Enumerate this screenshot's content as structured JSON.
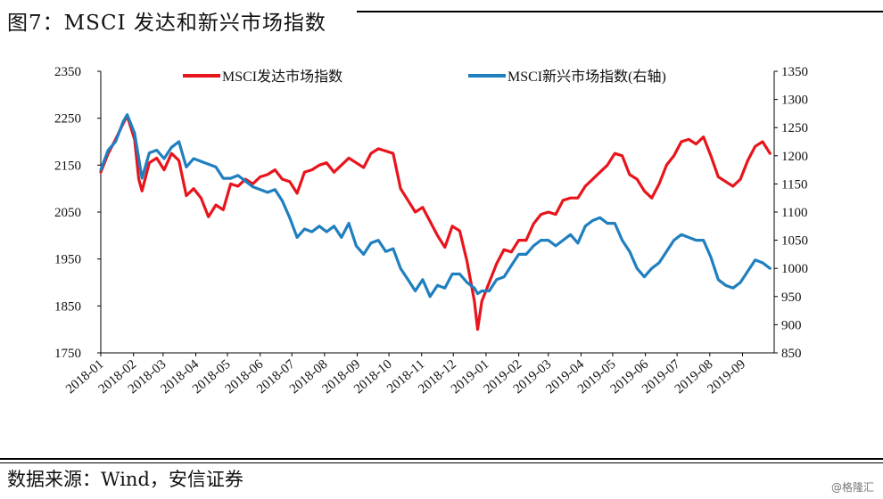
{
  "figure": {
    "title": "图7：MSCI 发达和新兴市场指数",
    "source": "数据来源：Wind，安信证券",
    "watermark": "@格隆汇"
  },
  "chart_data": {
    "type": "line",
    "title": "图7：MSCI 发达和新兴市场指数",
    "xlabel": "",
    "ylabel": "",
    "x_ticks": [
      "2018-01",
      "2018-02",
      "2018-03",
      "2018-04",
      "2018-05",
      "2018-06",
      "2018-07",
      "2018-08",
      "2018-09",
      "2018-10",
      "2018-11",
      "2018-12",
      "2019-01",
      "2019-02",
      "2019-03",
      "2019-04",
      "2019-05",
      "2019-06",
      "2019-07",
      "2019-08",
      "2019-09"
    ],
    "y_left": {
      "range": [
        1750,
        2350
      ],
      "ticks": [
        1750,
        1850,
        1950,
        2050,
        2150,
        2250,
        2350
      ]
    },
    "y_right": {
      "range": [
        850,
        1350
      ],
      "ticks": [
        850,
        900,
        950,
        1000,
        1050,
        1100,
        1150,
        1200,
        1250,
        1300,
        1350
      ]
    },
    "legend_position": "top",
    "grid": false,
    "series": [
      {
        "name": "MSCI发达市场指数",
        "axis": "left",
        "color": "#e8141b",
        "points": [
          [
            "2018-01-01",
            2135
          ],
          [
            "2018-01-08",
            2175
          ],
          [
            "2018-01-15",
            2205
          ],
          [
            "2018-01-22",
            2238
          ],
          [
            "2018-01-26",
            2255
          ],
          [
            "2018-02-02",
            2205
          ],
          [
            "2018-02-06",
            2120
          ],
          [
            "2018-02-09",
            2095
          ],
          [
            "2018-02-16",
            2155
          ],
          [
            "2018-02-23",
            2165
          ],
          [
            "2018-03-02",
            2140
          ],
          [
            "2018-03-09",
            2175
          ],
          [
            "2018-03-16",
            2160
          ],
          [
            "2018-03-23",
            2085
          ],
          [
            "2018-03-30",
            2100
          ],
          [
            "2018-04-06",
            2080
          ],
          [
            "2018-04-13",
            2040
          ],
          [
            "2018-04-20",
            2065
          ],
          [
            "2018-04-27",
            2055
          ],
          [
            "2018-05-04",
            2110
          ],
          [
            "2018-05-11",
            2105
          ],
          [
            "2018-05-18",
            2120
          ],
          [
            "2018-05-25",
            2110
          ],
          [
            "2018-06-01",
            2125
          ],
          [
            "2018-06-08",
            2130
          ],
          [
            "2018-06-15",
            2140
          ],
          [
            "2018-06-22",
            2120
          ],
          [
            "2018-06-29",
            2115
          ],
          [
            "2018-07-06",
            2090
          ],
          [
            "2018-07-13",
            2135
          ],
          [
            "2018-07-20",
            2140
          ],
          [
            "2018-07-27",
            2150
          ],
          [
            "2018-08-03",
            2155
          ],
          [
            "2018-08-10",
            2135
          ],
          [
            "2018-08-17",
            2150
          ],
          [
            "2018-08-24",
            2165
          ],
          [
            "2018-08-31",
            2155
          ],
          [
            "2018-09-07",
            2145
          ],
          [
            "2018-09-14",
            2175
          ],
          [
            "2018-09-21",
            2185
          ],
          [
            "2018-09-28",
            2180
          ],
          [
            "2018-10-05",
            2175
          ],
          [
            "2018-10-12",
            2100
          ],
          [
            "2018-10-19",
            2075
          ],
          [
            "2018-10-26",
            2050
          ],
          [
            "2018-11-02",
            2060
          ],
          [
            "2018-11-09",
            2030
          ],
          [
            "2018-11-16",
            2000
          ],
          [
            "2018-11-23",
            1975
          ],
          [
            "2018-11-30",
            2020
          ],
          [
            "2018-12-07",
            2010
          ],
          [
            "2018-12-14",
            1945
          ],
          [
            "2018-12-21",
            1860
          ],
          [
            "2018-12-24",
            1800
          ],
          [
            "2018-12-28",
            1860
          ],
          [
            "2019-01-04",
            1900
          ],
          [
            "2019-01-11",
            1940
          ],
          [
            "2019-01-18",
            1970
          ],
          [
            "2019-01-25",
            1965
          ],
          [
            "2019-02-01",
            1990
          ],
          [
            "2019-02-08",
            1990
          ],
          [
            "2019-02-15",
            2025
          ],
          [
            "2019-02-22",
            2045
          ],
          [
            "2019-03-01",
            2050
          ],
          [
            "2019-03-08",
            2045
          ],
          [
            "2019-03-15",
            2075
          ],
          [
            "2019-03-22",
            2080
          ],
          [
            "2019-03-29",
            2080
          ],
          [
            "2019-04-05",
            2105
          ],
          [
            "2019-04-12",
            2120
          ],
          [
            "2019-04-19",
            2135
          ],
          [
            "2019-04-26",
            2150
          ],
          [
            "2019-05-03",
            2175
          ],
          [
            "2019-05-10",
            2170
          ],
          [
            "2019-05-17",
            2130
          ],
          [
            "2019-05-24",
            2120
          ],
          [
            "2019-05-31",
            2095
          ],
          [
            "2019-06-07",
            2080
          ],
          [
            "2019-06-14",
            2110
          ],
          [
            "2019-06-21",
            2150
          ],
          [
            "2019-06-28",
            2170
          ],
          [
            "2019-07-05",
            2200
          ],
          [
            "2019-07-12",
            2205
          ],
          [
            "2019-07-19",
            2195
          ],
          [
            "2019-07-26",
            2210
          ],
          [
            "2019-08-02",
            2170
          ],
          [
            "2019-08-09",
            2125
          ],
          [
            "2019-08-16",
            2115
          ],
          [
            "2019-08-23",
            2105
          ],
          [
            "2019-08-30",
            2120
          ],
          [
            "2019-09-06",
            2160
          ],
          [
            "2019-09-13",
            2190
          ],
          [
            "2019-09-20",
            2200
          ],
          [
            "2019-09-27",
            2175
          ]
        ]
      },
      {
        "name": "MSCI新兴市场指数(右轴)",
        "axis": "right",
        "color": "#1f7fbf",
        "points": [
          [
            "2018-01-01",
            1175
          ],
          [
            "2018-01-08",
            1210
          ],
          [
            "2018-01-15",
            1225
          ],
          [
            "2018-01-22",
            1260
          ],
          [
            "2018-01-26",
            1273
          ],
          [
            "2018-02-02",
            1240
          ],
          [
            "2018-02-06",
            1195
          ],
          [
            "2018-02-09",
            1160
          ],
          [
            "2018-02-16",
            1205
          ],
          [
            "2018-02-23",
            1210
          ],
          [
            "2018-03-02",
            1195
          ],
          [
            "2018-03-09",
            1215
          ],
          [
            "2018-03-16",
            1225
          ],
          [
            "2018-03-23",
            1180
          ],
          [
            "2018-03-30",
            1195
          ],
          [
            "2018-04-06",
            1190
          ],
          [
            "2018-04-13",
            1185
          ],
          [
            "2018-04-20",
            1180
          ],
          [
            "2018-04-27",
            1160
          ],
          [
            "2018-05-04",
            1160
          ],
          [
            "2018-05-11",
            1165
          ],
          [
            "2018-05-18",
            1155
          ],
          [
            "2018-05-25",
            1145
          ],
          [
            "2018-06-01",
            1140
          ],
          [
            "2018-06-08",
            1135
          ],
          [
            "2018-06-15",
            1140
          ],
          [
            "2018-06-22",
            1120
          ],
          [
            "2018-06-29",
            1090
          ],
          [
            "2018-07-06",
            1055
          ],
          [
            "2018-07-13",
            1070
          ],
          [
            "2018-07-20",
            1065
          ],
          [
            "2018-07-27",
            1075
          ],
          [
            "2018-08-03",
            1065
          ],
          [
            "2018-08-10",
            1075
          ],
          [
            "2018-08-17",
            1055
          ],
          [
            "2018-08-24",
            1080
          ],
          [
            "2018-08-31",
            1040
          ],
          [
            "2018-09-07",
            1025
          ],
          [
            "2018-09-14",
            1045
          ],
          [
            "2018-09-21",
            1050
          ],
          [
            "2018-09-28",
            1030
          ],
          [
            "2018-10-05",
            1035
          ],
          [
            "2018-10-12",
            1000
          ],
          [
            "2018-10-19",
            980
          ],
          [
            "2018-10-26",
            960
          ],
          [
            "2018-11-02",
            980
          ],
          [
            "2018-11-09",
            950
          ],
          [
            "2018-11-16",
            970
          ],
          [
            "2018-11-23",
            965
          ],
          [
            "2018-11-30",
            990
          ],
          [
            "2018-12-07",
            990
          ],
          [
            "2018-12-14",
            975
          ],
          [
            "2018-12-21",
            965
          ],
          [
            "2018-12-24",
            955
          ],
          [
            "2018-12-28",
            960
          ],
          [
            "2019-01-04",
            960
          ],
          [
            "2019-01-11",
            980
          ],
          [
            "2019-01-18",
            985
          ],
          [
            "2019-01-25",
            1005
          ],
          [
            "2019-02-01",
            1025
          ],
          [
            "2019-02-08",
            1025
          ],
          [
            "2019-02-15",
            1040
          ],
          [
            "2019-02-22",
            1050
          ],
          [
            "2019-03-01",
            1050
          ],
          [
            "2019-03-08",
            1040
          ],
          [
            "2019-03-15",
            1050
          ],
          [
            "2019-03-22",
            1060
          ],
          [
            "2019-03-29",
            1045
          ],
          [
            "2019-04-05",
            1075
          ],
          [
            "2019-04-12",
            1085
          ],
          [
            "2019-04-19",
            1090
          ],
          [
            "2019-04-26",
            1080
          ],
          [
            "2019-05-03",
            1080
          ],
          [
            "2019-05-10",
            1050
          ],
          [
            "2019-05-17",
            1030
          ],
          [
            "2019-05-24",
            1000
          ],
          [
            "2019-05-31",
            985
          ],
          [
            "2019-06-07",
            1000
          ],
          [
            "2019-06-14",
            1010
          ],
          [
            "2019-06-21",
            1030
          ],
          [
            "2019-06-28",
            1050
          ],
          [
            "2019-07-05",
            1060
          ],
          [
            "2019-07-12",
            1055
          ],
          [
            "2019-07-19",
            1050
          ],
          [
            "2019-07-26",
            1050
          ],
          [
            "2019-08-02",
            1020
          ],
          [
            "2019-08-09",
            980
          ],
          [
            "2019-08-16",
            970
          ],
          [
            "2019-08-23",
            965
          ],
          [
            "2019-08-30",
            975
          ],
          [
            "2019-09-06",
            995
          ],
          [
            "2019-09-13",
            1015
          ],
          [
            "2019-09-20",
            1010
          ],
          [
            "2019-09-27",
            1000
          ]
        ]
      }
    ]
  }
}
